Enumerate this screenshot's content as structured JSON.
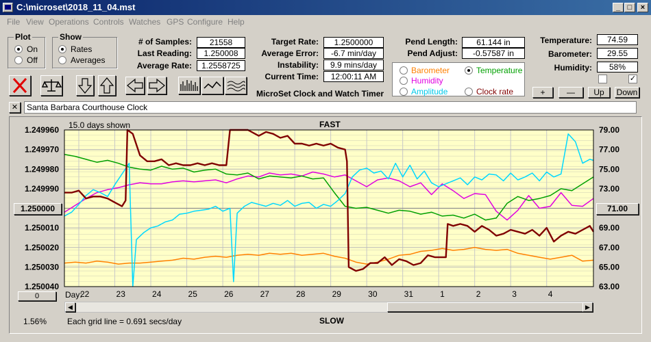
{
  "window": {
    "title": "C:\\microset\\2018_11_04.mst"
  },
  "menu": [
    "File",
    "View",
    "Operations",
    "Controls",
    "Watches",
    "GPS",
    "Configure",
    "Help"
  ],
  "plot_group": {
    "title": "Plot",
    "on_label": "On",
    "off_label": "Off",
    "selected": "On"
  },
  "show_group": {
    "title": "Show",
    "rates_label": "Rates",
    "averages_label": "Averages",
    "selected": "Rates"
  },
  "stats": {
    "samples_label": "# of Samples:",
    "samples_value": "21558",
    "last_reading_label": "Last Reading:",
    "last_reading_value": "1.250008",
    "average_rate_label": "Average Rate:",
    "average_rate_value": "1.2558725",
    "target_rate_label": "Target Rate:",
    "target_rate_value": "1.2500000",
    "average_error_label": "Average Error:",
    "average_error_value": "-6.7 min/day",
    "instability_label": "Instability:",
    "instability_value": "9.9 mins/day",
    "current_time_label": "Current Time:",
    "current_time_value": "12:00:11 AM",
    "pend_length_label": "Pend Length:",
    "pend_length_value": "61.144 in",
    "pend_adjust_label": "Pend Adjust:",
    "pend_adjust_value": "-0.57587 in",
    "temperature_label": "Temperature:",
    "temperature_value": "74.59",
    "barometer_label": "Barometer:",
    "barometer_value": "29.55",
    "humidity_label": "Humidity:",
    "humidity_value": "58%"
  },
  "app_caption": "MicroSet Clock and Watch Timer",
  "aux_select": {
    "barometer": "Barometer",
    "temperature": "Temperature",
    "humidity": "Humidity",
    "amplitude": "Amplitude",
    "clock_rate": "Clock rate",
    "selected": "Temperature"
  },
  "colors": {
    "barometer": "#ff8000",
    "temperature": "#00a000",
    "humidity": "#e000e0",
    "amplitude": "#00d8ff",
    "rate": "#800000",
    "plot_bg": "#ffffc8"
  },
  "scale_buttons": {
    "plus": "+",
    "minus": "—",
    "up": "Up",
    "down": "Down"
  },
  "close_label": "✕",
  "watch_name": "Santa Barbara Courthouse Clock",
  "chart_data": {
    "type": "line",
    "title": "FAST",
    "bottom_label": "SLOW",
    "days_shown": "15.0 days shown",
    "grid_note": "Each grid line = 0.691 secs/day",
    "x_label": "Day:",
    "x_ticks": [
      "22",
      "23",
      "24",
      "25",
      "26",
      "27",
      "28",
      "29",
      "30",
      "31",
      "1",
      "2",
      "3",
      "4"
    ],
    "x_range": [
      21.6,
      36.3
    ],
    "y_left_ticks": [
      "1.249960",
      "1.249970",
      "1.249980",
      "1.249990",
      "1.250000",
      "1.250010",
      "1.250020",
      "1.250030",
      "1.250040"
    ],
    "y_left_range": [
      1.24996,
      1.25004
    ],
    "y_left_center_button": "1.250000",
    "y_right_ticks": [
      "79.00",
      "77.00",
      "75.00",
      "73.00",
      "71.00",
      "69.00",
      "67.00",
      "65.00",
      "63.00"
    ],
    "y_right_range": [
      63,
      79
    ],
    "y_right_center_button": "71.00",
    "y_left_bottom_button": "0",
    "percent": "1.56%",
    "series": [
      {
        "key": "rate",
        "x": [
          21.6,
          21.8,
          22.0,
          22.2,
          22.4,
          22.6,
          22.8,
          23.0,
          23.2,
          23.3,
          23.35,
          23.5,
          23.7,
          23.9,
          24.1,
          24.3,
          24.5,
          24.7,
          24.9,
          25.1,
          25.3,
          25.5,
          25.7,
          25.9,
          26.1,
          26.2,
          26.3,
          26.5,
          26.7,
          26.9,
          27.0,
          27.2,
          27.4,
          27.6,
          27.8,
          28.0,
          28.2,
          28.4,
          28.6,
          28.8,
          29.0,
          29.2,
          29.4,
          29.45,
          29.5,
          29.7,
          29.9,
          30.1,
          30.3,
          30.5,
          30.7,
          30.9,
          31.1,
          31.3,
          31.5,
          31.7,
          31.9,
          32.1,
          32.2,
          32.25,
          32.4,
          32.6,
          32.8,
          33.0,
          33.2,
          33.4,
          33.6,
          33.8,
          34.0,
          34.2,
          34.4,
          34.6,
          34.8,
          35.0,
          35.2,
          35.4,
          35.6,
          35.8,
          36.0,
          36.2,
          36.3
        ],
        "y": [
          1.249992,
          1.249992,
          1.249991,
          1.249995,
          1.249994,
          1.249994,
          1.249995,
          1.249997,
          1.249999,
          1.249996,
          1.24996,
          1.249962,
          1.249973,
          1.249976,
          1.249976,
          1.249975,
          1.249978,
          1.249977,
          1.249978,
          1.249978,
          1.249977,
          1.249978,
          1.249977,
          1.249978,
          1.249978,
          1.24996,
          1.24996,
          1.24996,
          1.24996,
          1.249962,
          1.249963,
          1.249961,
          1.249962,
          1.249964,
          1.249963,
          1.249967,
          1.249967,
          1.249968,
          1.249967,
          1.249968,
          1.249967,
          1.249969,
          1.24997,
          1.249976,
          1.25003,
          1.250032,
          1.250031,
          1.250028,
          1.250028,
          1.250025,
          1.250029,
          1.250026,
          1.250027,
          1.250029,
          1.250028,
          1.250024,
          1.250025,
          1.250025,
          1.250025,
          1.250008,
          1.250009,
          1.250008,
          1.250009,
          1.250012,
          1.250009,
          1.250011,
          1.250014,
          1.250013,
          1.250011,
          1.250012,
          1.250013,
          1.250011,
          1.250014,
          1.25001,
          1.250017,
          1.250014,
          1.250012,
          1.250013,
          1.250011,
          1.250009,
          1.250012
        ]
      },
      {
        "key": "temperature",
        "x": [
          21.6,
          21.9,
          22.2,
          22.5,
          22.8,
          23.1,
          23.4,
          23.7,
          24.0,
          24.3,
          24.6,
          24.9,
          25.2,
          25.5,
          25.8,
          26.1,
          26.4,
          26.7,
          27.0,
          27.3,
          27.6,
          27.9,
          28.2,
          28.5,
          28.8,
          29.1,
          29.4,
          29.7,
          30.0,
          30.3,
          30.6,
          30.9,
          31.2,
          31.5,
          31.8,
          32.1,
          32.4,
          32.7,
          33.0,
          33.3,
          33.6,
          33.9,
          34.2,
          34.5,
          34.8,
          35.1,
          35.4,
          35.7,
          36.0,
          36.3
        ],
        "y": [
          76.5,
          76.3,
          76.0,
          75.7,
          75.9,
          75.6,
          75.2,
          75.0,
          74.9,
          75.3,
          75.0,
          75.1,
          74.7,
          74.9,
          75.0,
          74.5,
          74.4,
          74.6,
          74.0,
          74.3,
          74.2,
          74.1,
          74.3,
          74.0,
          74.1,
          72.6,
          71.2,
          71.0,
          71.1,
          70.8,
          70.5,
          70.8,
          70.7,
          70.4,
          70.6,
          70.2,
          70.3,
          70.0,
          70.4,
          69.8,
          70.0,
          71.5,
          72.2,
          71.8,
          72.0,
          72.3,
          73.0,
          72.8,
          73.5,
          74.2
        ]
      },
      {
        "key": "humidity",
        "x": [
          21.6,
          21.9,
          22.2,
          22.5,
          22.8,
          23.1,
          23.4,
          23.7,
          24.0,
          24.3,
          24.6,
          24.9,
          25.2,
          25.5,
          25.8,
          26.1,
          26.4,
          26.7,
          27.0,
          27.3,
          27.6,
          27.9,
          28.2,
          28.5,
          28.8,
          29.1,
          29.4,
          29.7,
          30.0,
          30.3,
          30.6,
          30.9,
          31.2,
          31.5,
          31.8,
          32.1,
          32.4,
          32.7,
          33.0,
          33.3,
          33.6,
          33.9,
          34.2,
          34.5,
          34.8,
          35.1,
          35.4,
          35.7,
          36.0,
          36.3
        ],
        "y": [
          70.6,
          71.3,
          72.0,
          72.6,
          72.9,
          73.1,
          73.4,
          73.6,
          73.5,
          73.5,
          73.7,
          73.8,
          73.7,
          73.8,
          73.9,
          73.6,
          74.0,
          74.3,
          74.2,
          74.6,
          74.4,
          74.5,
          74.3,
          74.7,
          74.5,
          74.2,
          74.4,
          73.8,
          73.2,
          73.9,
          74.1,
          73.8,
          73.2,
          73.6,
          72.4,
          73.5,
          72.8,
          72.0,
          72.5,
          72.4,
          70.7,
          69.8,
          70.8,
          72.3,
          71.0,
          71.2,
          72.6,
          71.3,
          71.2,
          72.0
        ]
      },
      {
        "key": "amplitude",
        "x": [
          21.6,
          21.8,
          22.0,
          22.2,
          22.4,
          22.6,
          22.8,
          23.0,
          23.2,
          23.4,
          23.5,
          23.6,
          23.8,
          24.0,
          24.2,
          24.4,
          24.6,
          24.8,
          25.0,
          25.2,
          25.4,
          25.6,
          25.8,
          26.0,
          26.2,
          26.3,
          26.4,
          26.6,
          26.8,
          27.0,
          27.2,
          27.4,
          27.6,
          27.8,
          28.0,
          28.2,
          28.4,
          28.6,
          28.8,
          29.0,
          29.2,
          29.4,
          29.6,
          29.8,
          30.0,
          30.2,
          30.4,
          30.6,
          30.8,
          31.0,
          31.2,
          31.4,
          31.6,
          31.8,
          32.0,
          32.2,
          32.4,
          32.6,
          32.8,
          33.0,
          33.2,
          33.4,
          33.6,
          33.8,
          34.0,
          34.2,
          34.4,
          34.6,
          34.8,
          35.0,
          35.2,
          35.4,
          35.6,
          35.8,
          36.0,
          36.2,
          36.3
        ],
        "y": [
          70.2,
          70.6,
          71.4,
          72.3,
          72.9,
          72.6,
          72.2,
          73.4,
          74.5,
          75.6,
          63.0,
          67.8,
          68.5,
          69.0,
          69.2,
          69.6,
          69.8,
          70.4,
          70.5,
          70.7,
          70.8,
          70.9,
          71.2,
          70.7,
          71.0,
          63.5,
          70.5,
          71.2,
          71.6,
          71.4,
          71.2,
          71.5,
          71.3,
          71.8,
          71.2,
          71.5,
          71.6,
          71.0,
          71.4,
          71.2,
          71.8,
          72.5,
          74.2,
          74.9,
          75.1,
          74.6,
          74.8,
          74.0,
          75.6,
          74.2,
          75.4,
          74.0,
          74.8,
          73.6,
          73.2,
          73.5,
          73.8,
          74.1,
          73.4,
          74.2,
          73.9,
          74.5,
          74.4,
          73.8,
          74.6,
          73.9,
          74.2,
          74.6,
          73.8,
          74.7,
          74.2,
          74.5,
          78.6,
          77.8,
          75.6,
          76.0,
          75.9
        ]
      },
      {
        "key": "barometer",
        "x": [
          21.6,
          21.9,
          22.2,
          22.5,
          22.8,
          23.1,
          23.4,
          23.7,
          24.0,
          24.3,
          24.6,
          24.9,
          25.2,
          25.5,
          25.8,
          26.1,
          26.4,
          26.7,
          27.0,
          27.3,
          27.6,
          27.9,
          28.2,
          28.5,
          28.8,
          29.1,
          29.4,
          29.7,
          30.0,
          30.3,
          30.6,
          30.9,
          31.2,
          31.5,
          31.8,
          32.1,
          32.4,
          32.7,
          33.0,
          33.3,
          33.6,
          33.9,
          34.2,
          34.5,
          34.8,
          35.1,
          35.4,
          35.7,
          36.0,
          36.3
        ],
        "y": [
          65.4,
          65.5,
          65.4,
          65.6,
          65.5,
          65.3,
          65.4,
          65.4,
          65.5,
          65.6,
          65.7,
          65.9,
          65.8,
          66.0,
          66.1,
          66.0,
          66.2,
          66.3,
          66.2,
          66.4,
          66.3,
          66.4,
          66.2,
          66.3,
          66.4,
          66.1,
          65.9,
          65.5,
          65.3,
          65.5,
          65.8,
          66.2,
          66.3,
          66.6,
          66.7,
          66.9,
          66.7,
          66.8,
          67.0,
          66.8,
          66.7,
          66.8,
          66.4,
          66.2,
          66.0,
          65.8,
          66.0,
          66.2,
          65.6,
          65.7
        ]
      }
    ]
  }
}
